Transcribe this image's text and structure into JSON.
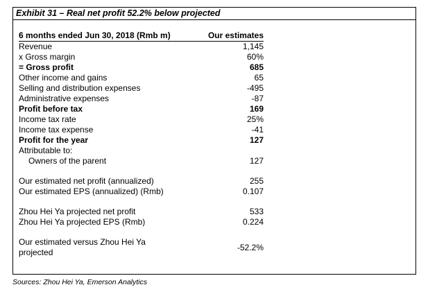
{
  "exhibit": {
    "title": "Exhibit 31 – Real net profit 52.2% below projected",
    "header": {
      "label": "6 months ended Jun 30, 2018 (Rmb m)",
      "value": "Our estimates"
    },
    "rows": [
      {
        "label": "Revenue",
        "value": "1,145"
      },
      {
        "label": "x Gross margin",
        "value": "60%"
      },
      {
        "label": "= Gross profit",
        "value": "685"
      },
      {
        "label": "Other income and gains",
        "value": "65"
      },
      {
        "label": "Selling and distribution expenses",
        "value": "-495"
      },
      {
        "label": "Administrative expenses",
        "value": "-87"
      },
      {
        "label": "Profit before tax",
        "value": "169"
      },
      {
        "label": "Income tax rate",
        "value": "25%"
      },
      {
        "label": "Income tax expense",
        "value": "-41"
      },
      {
        "label": "Profit for the year",
        "value": "127"
      },
      {
        "label": "Attributable to:",
        "value": ""
      },
      {
        "label": "Owners of the parent",
        "value": "127"
      },
      {
        "label": "Our estimated net profit (annualized)",
        "value": "255"
      },
      {
        "label": "Our estimated EPS (annualized) (Rmb)",
        "value": "0.107"
      },
      {
        "label": "Zhou Hei Ya projected net profit",
        "value": "533"
      },
      {
        "label": "Zhou Hei Ya projected EPS (Rmb)",
        "value": "0.224"
      },
      {
        "label": "Our estimated versus Zhou Hei Ya projected",
        "value": "-52.2%"
      }
    ]
  },
  "source": "Sources: Zhou Hei Ya, Emerson Analytics"
}
